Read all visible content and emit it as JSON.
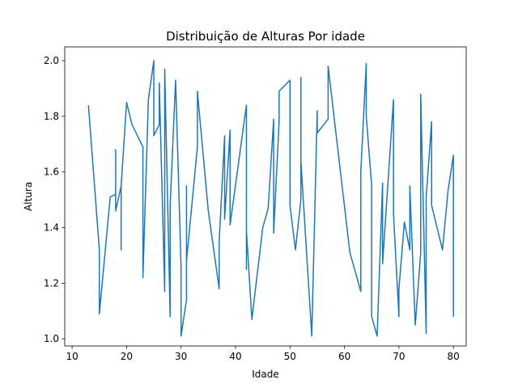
{
  "chart_data": {
    "type": "line",
    "title": "Distribuição de Alturas Por idade",
    "xlabel": "Idade",
    "ylabel": "Altura",
    "xlim": [
      8.65,
      82.35
    ],
    "ylim": [
      0.9745,
      2.0495
    ],
    "xticks": [
      10,
      20,
      30,
      40,
      50,
      60,
      70,
      80
    ],
    "yticks": [
      1.0,
      1.2,
      1.4,
      1.6,
      1.8,
      2.0
    ],
    "xtick_labels": [
      "10",
      "20",
      "30",
      "40",
      "50",
      "60",
      "70",
      "80"
    ],
    "ytick_labels": [
      "1.0",
      "1.2",
      "1.4",
      "1.6",
      "1.8",
      "2.0"
    ],
    "grid": false,
    "legend": "none",
    "colors": {
      "line": "#1f77b4"
    },
    "series": [
      {
        "x": [
          13,
          15,
          15,
          17,
          18,
          18,
          18,
          19,
          19,
          19,
          20,
          21,
          23,
          23,
          24,
          25,
          25,
          26,
          26,
          27,
          27,
          28,
          28,
          29,
          30,
          30,
          31,
          31,
          31,
          33,
          33,
          35,
          37,
          37,
          38,
          38,
          39,
          39,
          42,
          42,
          42,
          43,
          45,
          46,
          47,
          47,
          48,
          48,
          50,
          50,
          51,
          52,
          52,
          52,
          54,
          55,
          55,
          57,
          57,
          61,
          63,
          63,
          64,
          64,
          65,
          65,
          66,
          67,
          67,
          69,
          69,
          70,
          70,
          71,
          72,
          72,
          73,
          74,
          74,
          75,
          75,
          76,
          76,
          78,
          79,
          80,
          80
        ],
        "y": [
          1.84,
          1.32,
          1.09,
          1.51,
          1.52,
          1.68,
          1.46,
          1.55,
          1.32,
          1.55,
          1.85,
          1.77,
          1.69,
          1.22,
          1.86,
          2.0,
          1.73,
          1.77,
          1.92,
          1.17,
          1.97,
          1.08,
          1.48,
          1.93,
          1.26,
          1.01,
          1.14,
          1.55,
          1.28,
          1.69,
          1.89,
          1.46,
          1.18,
          1.35,
          1.73,
          1.43,
          1.75,
          1.41,
          1.84,
          1.25,
          1.39,
          1.07,
          1.4,
          1.47,
          1.79,
          1.38,
          1.78,
          1.89,
          1.93,
          1.48,
          1.32,
          1.5,
          1.94,
          1.64,
          1.01,
          1.82,
          1.74,
          1.79,
          1.98,
          1.31,
          1.17,
          1.6,
          1.99,
          1.8,
          1.55,
          1.08,
          1.01,
          1.56,
          1.27,
          1.86,
          1.45,
          1.08,
          1.18,
          1.42,
          1.32,
          1.55,
          1.05,
          1.31,
          1.88,
          1.02,
          1.51,
          1.78,
          1.48,
          1.32,
          1.53,
          1.66,
          1.08
        ]
      }
    ]
  }
}
